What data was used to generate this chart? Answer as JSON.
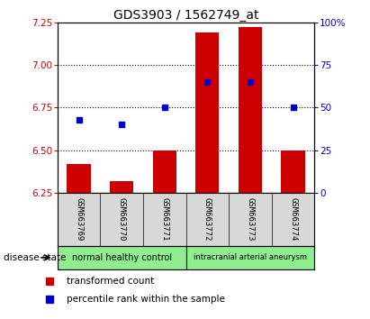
{
  "title": "GDS3903 / 1562749_at",
  "samples": [
    "GSM663769",
    "GSM663770",
    "GSM663771",
    "GSM663772",
    "GSM663773",
    "GSM663774"
  ],
  "red_values": [
    6.42,
    6.32,
    6.5,
    7.19,
    7.22,
    6.5
  ],
  "blue_percentiles": [
    43,
    40,
    50,
    65,
    65,
    50
  ],
  "ylim_left": [
    6.25,
    7.25
  ],
  "ylim_right": [
    0,
    100
  ],
  "yticks_left": [
    6.25,
    6.5,
    6.75,
    7.0,
    7.25
  ],
  "yticks_right": [
    0,
    25,
    50,
    75,
    100
  ],
  "bar_color": "#CC0000",
  "dot_color": "#0000CC",
  "baseline": 6.25,
  "background_color": "#D8D8D8",
  "plot_bg": "#FFFFFF",
  "group1_label": "normal healthy control",
  "group2_label": "intracranial arterial aneurysm",
  "group_color": "#90EE90",
  "legend_red_label": "transformed count",
  "legend_blue_label": "percentile rank within the sample",
  "disease_state_label": "disease state"
}
